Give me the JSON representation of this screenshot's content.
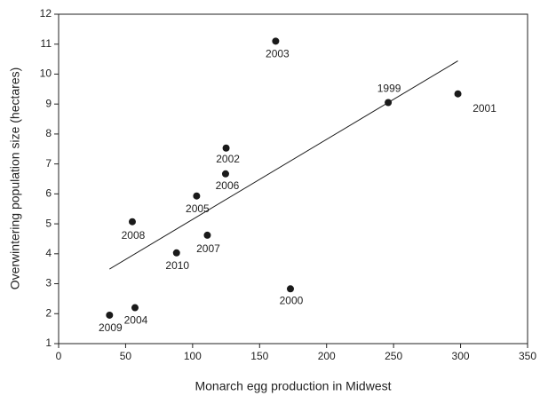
{
  "chart_data": {
    "type": "scatter",
    "x_label": "Monarch egg production in Midwest",
    "y_label": "Overwintering population size (hectares)",
    "labels": [
      "1999",
      "2000",
      "2001",
      "2002",
      "2003",
      "2004",
      "2005",
      "2006",
      "2007",
      "2008",
      "2009",
      "2010"
    ],
    "x": [
      246,
      173,
      298,
      125,
      162,
      57,
      103,
      124.6,
      111,
      55,
      38,
      88
    ],
    "values": [
      9.05,
      2.83,
      9.34,
      7.53,
      11.1,
      2.2,
      5.93,
      6.67,
      4.62,
      5.07,
      1.95,
      4.03
    ],
    "color": "#1a1a1a",
    "trendline": {
      "x": [
        38,
        298
      ],
      "y": [
        3.49,
        10.44
      ],
      "color": "#1a1a1a"
    },
    "xlim": [
      0,
      350
    ],
    "xticks": [
      0,
      50,
      100,
      150,
      200,
      250,
      300,
      350
    ],
    "ylim": [
      1,
      12
    ],
    "yticks": [
      1,
      2,
      3,
      4,
      5,
      6,
      7,
      8,
      9,
      10,
      11,
      12
    ],
    "grid": false
  }
}
